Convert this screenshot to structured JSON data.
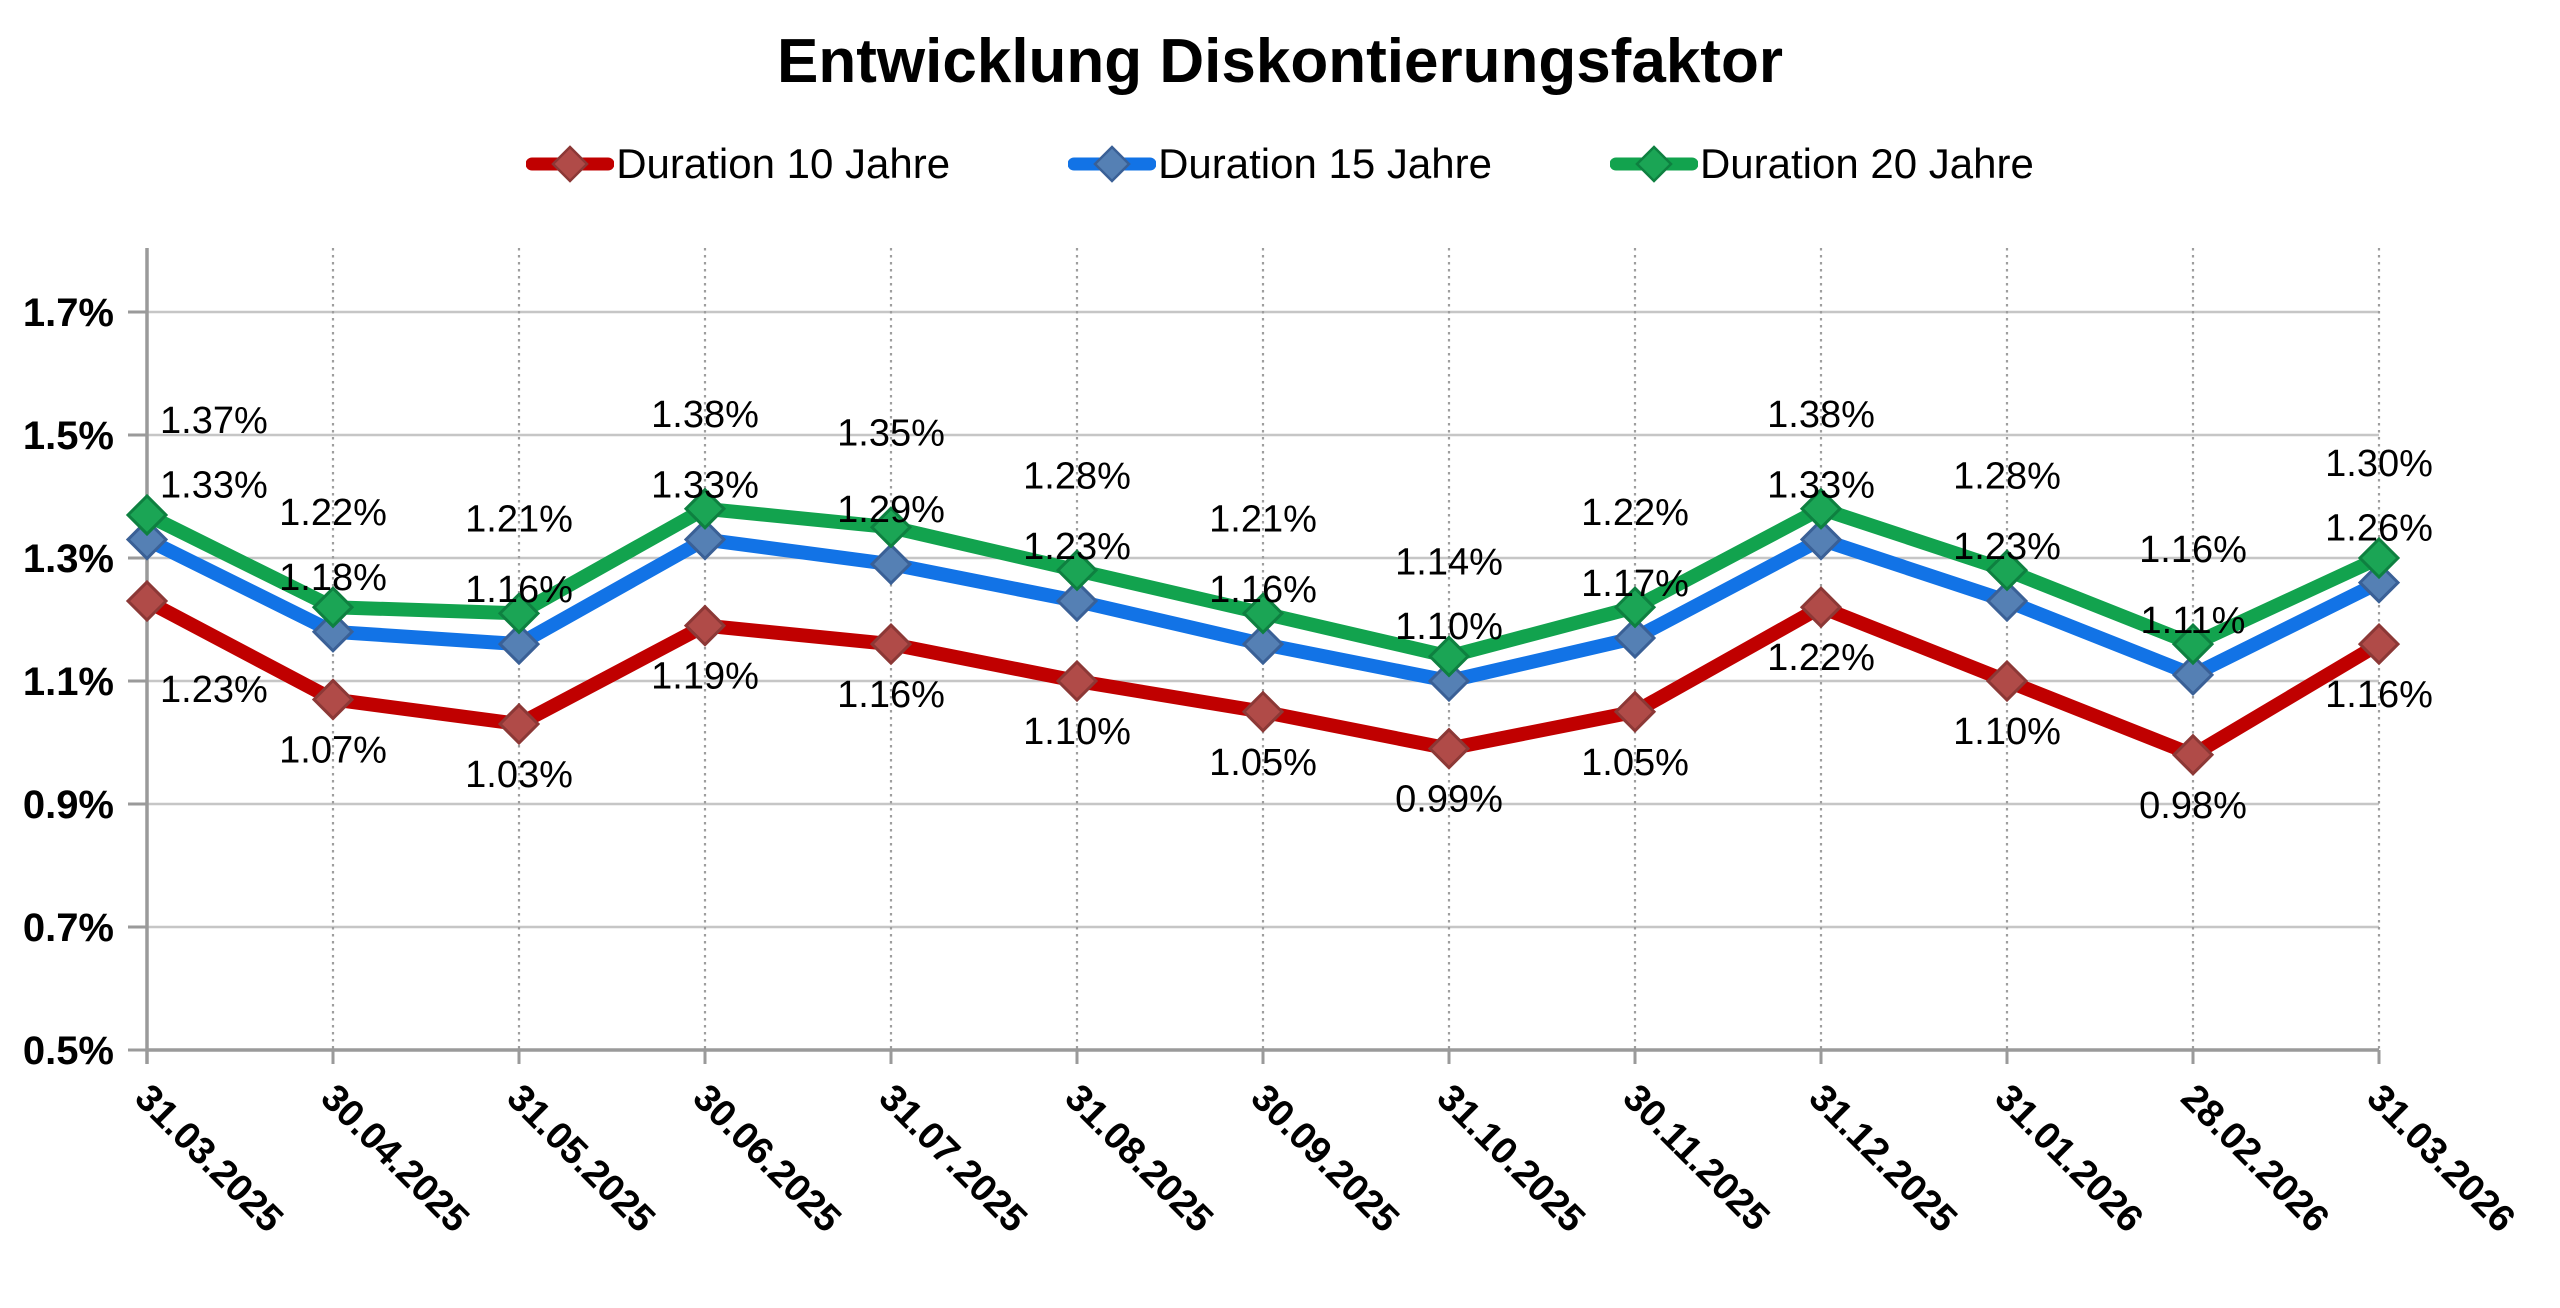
{
  "chart_data": {
    "type": "line",
    "title": "Entwicklung Diskontierungsfaktor",
    "categories": [
      "31.03.2025",
      "30.04.2025",
      "31.05.2025",
      "30.06.2025",
      "31.07.2025",
      "31.08.2025",
      "30.09.2025",
      "31.10.2025",
      "30.11.2025",
      "31.12.2025",
      "31.01.2026",
      "28.02.2026",
      "31.03.2026"
    ],
    "series": [
      {
        "name": "Duration 10 Jahre",
        "line_color": "#C00000",
        "marker_fill": "#B04B48",
        "marker_stroke": "#8C3836",
        "label_position": "below",
        "values": [
          1.23,
          1.07,
          1.03,
          1.19,
          1.16,
          1.1,
          1.05,
          0.99,
          1.05,
          1.22,
          1.1,
          0.98,
          1.16
        ],
        "labels": [
          "1.23%",
          "1.07%",
          "1.03%",
          "1.19%",
          "1.16%",
          "1.10%",
          "1.05%",
          "0.99%",
          "1.05%",
          "1.22%",
          "1.10%",
          "0.98%",
          "1.16%"
        ]
      },
      {
        "name": "Duration 15 Jahre",
        "line_color": "#1273E6",
        "marker_fill": "#5580B4",
        "marker_stroke": "#3A6096",
        "label_position": "above",
        "values": [
          1.33,
          1.18,
          1.16,
          1.33,
          1.29,
          1.23,
          1.16,
          1.1,
          1.17,
          1.33,
          1.23,
          1.11,
          1.26
        ],
        "labels": [
          "1.33%",
          "1.18%",
          "1.16%",
          "1.33%",
          "1.29%",
          "1.23%",
          "1.16%",
          "1.10%",
          "1.17%",
          "1.33%",
          "1.23%",
          "1.11%",
          "1.26%"
        ]
      },
      {
        "name": "Duration 20 Jahre",
        "line_color": "#12A34E",
        "marker_fill": "#1BA555",
        "marker_stroke": "#0E8040",
        "label_position": "above",
        "values": [
          1.37,
          1.22,
          1.21,
          1.38,
          1.35,
          1.28,
          1.21,
          1.14,
          1.22,
          1.38,
          1.28,
          1.16,
          1.3
        ],
        "labels": [
          "1.37%",
          "1.22%",
          "1.21%",
          "1.38%",
          "1.35%",
          "1.28%",
          "1.21%",
          "1.14%",
          "1.22%",
          "1.38%",
          "1.28%",
          "1.16%",
          "1.30%"
        ]
      }
    ],
    "y_axis": {
      "tick_labels": [
        "1.7%",
        "1.5%",
        "1.3%",
        "1.1%",
        "0.9%",
        "0.7%",
        "0.5%"
      ],
      "tick_values": [
        1.7,
        1.5,
        1.3,
        1.1,
        0.9,
        0.7,
        0.5
      ],
      "min": 0.5,
      "max": 1.8,
      "unit": "%"
    },
    "x_axis": {
      "label_rotation_deg": 45
    },
    "grid": {
      "horizontal_solid": true,
      "vertical_dotted": true
    },
    "legend": {
      "position": "top"
    },
    "colors": {
      "gridline": "#C6C6C6",
      "axis": "#9A9A9A",
      "dotted_gridline": "#9E9E9E",
      "text": "#000000",
      "background": "#FFFFFF"
    }
  }
}
